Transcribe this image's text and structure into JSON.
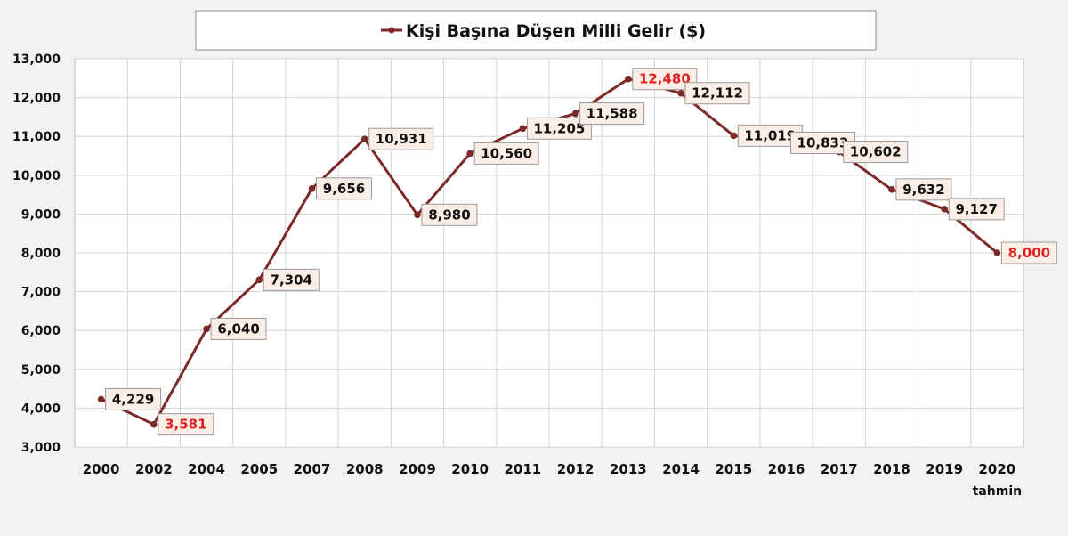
{
  "chart_data": {
    "type": "line",
    "legend": "Kişi Başına Düşen Milli Gelir ($)",
    "legend_position": "top-center",
    "grid": true,
    "ylim": [
      3000,
      13000
    ],
    "yticks": [
      "3,000",
      "4,000",
      "5,000",
      "6,000",
      "7,000",
      "8,000",
      "9,000",
      "10,000",
      "11,000",
      "12,000",
      "13,000"
    ],
    "ytick_values": [
      3000,
      4000,
      5000,
      6000,
      7000,
      8000,
      9000,
      10000,
      11000,
      12000,
      13000
    ],
    "categories": [
      "2000",
      "2002",
      "2004",
      "2005",
      "2007",
      "2008",
      "2009",
      "2010",
      "2011",
      "2012",
      "2013",
      "2014",
      "2015",
      "2016",
      "2017",
      "2018",
      "2019",
      "2020"
    ],
    "x_sublabels": {
      "2020": "tahmin"
    },
    "series": [
      {
        "name": "Kişi Başına Düşen Milli Gelir ($)",
        "color": "#7b2929",
        "values": [
          4229,
          3581,
          6040,
          7304,
          9656,
          10931,
          8980,
          10560,
          11205,
          11588,
          12480,
          12112,
          11019,
          10833,
          10602,
          9632,
          9127,
          8000
        ],
        "labels": [
          "4,229",
          "3,581",
          "6,040",
          "7,304",
          "9,656",
          "10,931",
          "8,980",
          "10,560",
          "11,205",
          "11,588",
          "12,480",
          "12,112",
          "11,019",
          "10,833",
          "10,602",
          "9,632",
          "9,127",
          "8,000"
        ],
        "highlighted": [
          "2002",
          "2013",
          "2020"
        ]
      }
    ],
    "label_color": "#111111",
    "highlight_color": "#e02020"
  }
}
